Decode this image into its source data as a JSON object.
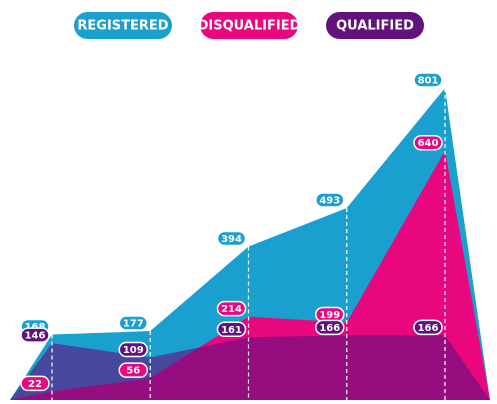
{
  "chart_data": {
    "type": "area",
    "categories": [
      null,
      null,
      null,
      null,
      null,
      null,
      null
    ],
    "series": [
      {
        "name": "REGISTERED",
        "color": "#1aa0cf",
        "values": [
          0,
          168,
          177,
          394,
          493,
          801,
          0
        ]
      },
      {
        "name": "DISQUALIFIED",
        "color": "#e8077e",
        "values": [
          0,
          22,
          56,
          214,
          199,
          640,
          0
        ]
      },
      {
        "name": "QUALIFIED",
        "color": "#62127e",
        "values": [
          0,
          146,
          109,
          161,
          166,
          166,
          0
        ]
      }
    ]
  }
}
